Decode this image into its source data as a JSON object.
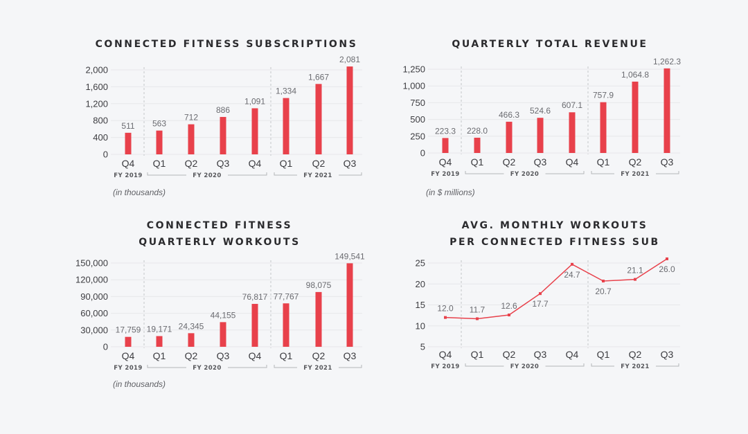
{
  "chart_data": [
    {
      "id": "subs",
      "type": "bar",
      "title": [
        "CONNECTED FITNESS SUBSCRIPTIONS"
      ],
      "categories": [
        "Q4",
        "Q1",
        "Q2",
        "Q3",
        "Q4",
        "Q1",
        "Q2",
        "Q3"
      ],
      "fiscal_years": [
        {
          "label": "FY 2019",
          "quarters": [
            "Q4"
          ]
        },
        {
          "label": "FY 2020",
          "quarters": [
            "Q1",
            "Q2",
            "Q3",
            "Q4"
          ]
        },
        {
          "label": "FY 2021",
          "quarters": [
            "Q1",
            "Q2",
            "Q3"
          ]
        }
      ],
      "values": [
        511,
        563,
        712,
        886,
        1091,
        1334,
        1667,
        2081
      ],
      "value_labels": [
        "511",
        "563",
        "712",
        "886",
        "1,091",
        "1,334",
        "1,667",
        "2,081"
      ],
      "yticks": [
        0,
        400,
        800,
        1200,
        1600,
        2000
      ],
      "ytick_labels": [
        "0",
        "400",
        "800",
        "1,200",
        "1,600",
        "2,000"
      ],
      "ylim": [
        0,
        2000
      ],
      "unit_note": "(in thousands)",
      "color": "#e8414b",
      "grid": true
    },
    {
      "id": "revenue",
      "type": "bar",
      "title": [
        "QUARTERLY TOTAL REVENUE"
      ],
      "categories": [
        "Q4",
        "Q1",
        "Q2",
        "Q3",
        "Q4",
        "Q1",
        "Q2",
        "Q3"
      ],
      "fiscal_years": [
        {
          "label": "FY 2019",
          "quarters": [
            "Q4"
          ]
        },
        {
          "label": "FY 2020",
          "quarters": [
            "Q1",
            "Q2",
            "Q3",
            "Q4"
          ]
        },
        {
          "label": "FY 2021",
          "quarters": [
            "Q1",
            "Q2",
            "Q3"
          ]
        }
      ],
      "values": [
        223.3,
        228.0,
        466.3,
        524.6,
        607.1,
        757.9,
        1064.8,
        1262.3
      ],
      "value_labels": [
        "223.3",
        "228.0",
        "466.3",
        "524.6",
        "607.1",
        "757.9",
        "1,064.8",
        "1,262.3"
      ],
      "yticks": [
        0,
        250,
        500,
        750,
        1000,
        1250
      ],
      "ytick_labels": [
        "0",
        "250",
        "500",
        "750",
        "1,000",
        "1,250"
      ],
      "ylim": [
        0,
        1250
      ],
      "unit_note": "(in $ millions)",
      "color": "#e8414b",
      "grid": true
    },
    {
      "id": "workouts",
      "type": "bar",
      "title": [
        "CONNECTED FITNESS",
        "QUARTERLY WORKOUTS"
      ],
      "categories": [
        "Q4",
        "Q1",
        "Q2",
        "Q3",
        "Q4",
        "Q1",
        "Q2",
        "Q3"
      ],
      "fiscal_years": [
        {
          "label": "FY 2019",
          "quarters": [
            "Q4"
          ]
        },
        {
          "label": "FY 2020",
          "quarters": [
            "Q1",
            "Q2",
            "Q3",
            "Q4"
          ]
        },
        {
          "label": "FY 2021",
          "quarters": [
            "Q1",
            "Q2",
            "Q3"
          ]
        }
      ],
      "values": [
        17759,
        19171,
        24345,
        44155,
        76817,
        77767,
        98075,
        149541
      ],
      "value_labels": [
        "17,759",
        "19,171",
        "24,345",
        "44,155",
        "76,817",
        "77,767",
        "98,075",
        "149,541"
      ],
      "yticks": [
        0,
        30000,
        60000,
        90000,
        120000,
        150000
      ],
      "ytick_labels": [
        "0",
        "30,000",
        "60,000",
        "90,000",
        "120,000",
        "150,000"
      ],
      "ylim": [
        0,
        150000
      ],
      "unit_note": "(in thousands)",
      "color": "#e8414b",
      "grid": true
    },
    {
      "id": "avg-workouts",
      "type": "line",
      "title": [
        "AVG. MONTHLY WORKOUTS",
        "PER CONNECTED FITNESS SUB"
      ],
      "categories": [
        "Q4",
        "Q1",
        "Q2",
        "Q3",
        "Q4",
        "Q1",
        "Q2",
        "Q3"
      ],
      "fiscal_years": [
        {
          "label": "FY 2019",
          "quarters": [
            "Q4"
          ]
        },
        {
          "label": "FY 2020",
          "quarters": [
            "Q1",
            "Q2",
            "Q3",
            "Q4"
          ]
        },
        {
          "label": "FY 2021",
          "quarters": [
            "Q1",
            "Q2",
            "Q3"
          ]
        }
      ],
      "values": [
        12.0,
        11.7,
        12.6,
        17.7,
        24.7,
        20.7,
        21.1,
        26.0
      ],
      "value_labels": [
        "12.0",
        "11.7",
        "12.6",
        "17.7",
        "24.7",
        "20.7",
        "21.1",
        "26.0"
      ],
      "label_position": [
        "above",
        "above",
        "above",
        "below",
        "below",
        "below",
        "above",
        "below"
      ],
      "yticks": [
        5,
        10,
        15,
        20,
        25
      ],
      "ytick_labels": [
        "5",
        "10",
        "15",
        "20",
        "25"
      ],
      "ylim": [
        5,
        25
      ],
      "unit_note": "",
      "color": "#e8414b",
      "grid": true
    }
  ]
}
